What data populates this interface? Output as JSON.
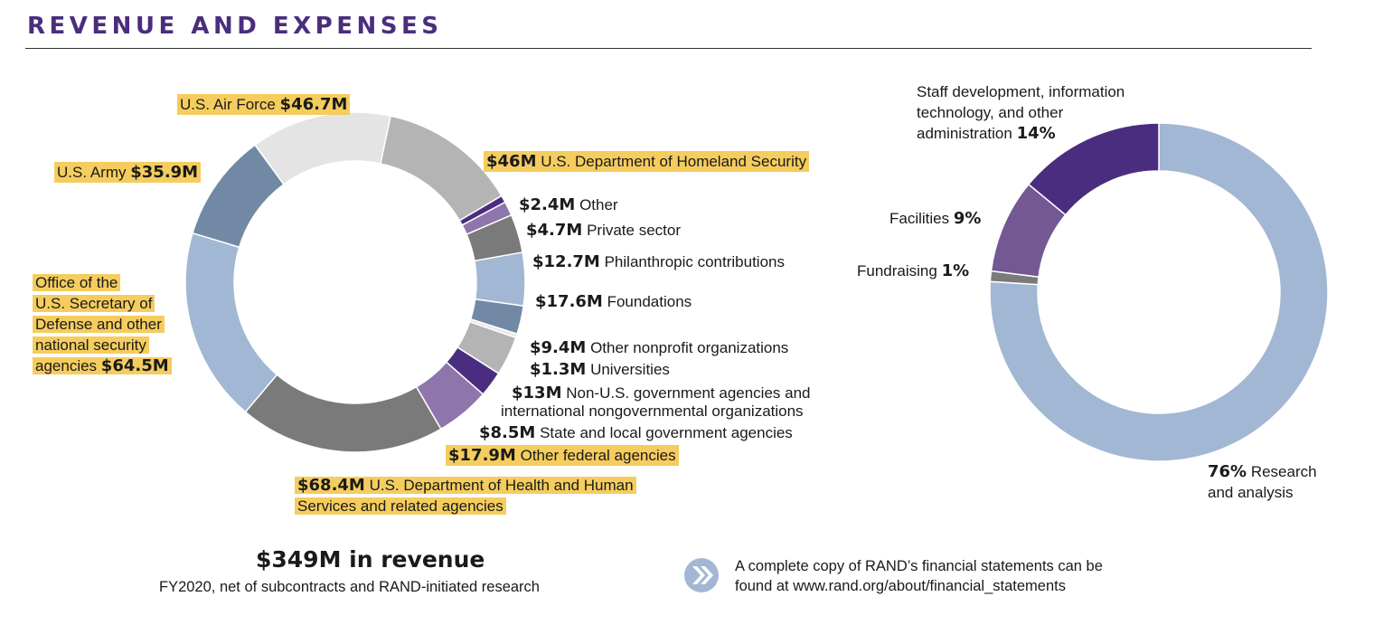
{
  "header": {
    "title": "REVENUE AND EXPENSES"
  },
  "revenue": {
    "total": "$349M in revenue",
    "subtitle": "FY2020, net of subcontracts and RAND-initiated research",
    "labels": {
      "air_force": {
        "name": "U.S. Air Force",
        "value": "$46.7M"
      },
      "army": {
        "name": "U.S. Army",
        "value": "$35.9M"
      },
      "osd_l1": "Office of the",
      "osd_l2": "U.S. Secretary of",
      "osd_l3": "Defense and other",
      "osd_l4": "national security",
      "osd_l5": "agencies",
      "osd_value": "$64.5M",
      "dhs": {
        "value": "$46M",
        "name": "U.S. Department of Homeland Security"
      },
      "other": {
        "value": "$2.4M",
        "name": "Other"
      },
      "private": {
        "value": "$4.7M",
        "name": "Private sector"
      },
      "philanthropic": {
        "value": "$12.7M",
        "name": "Philanthropic contributions"
      },
      "foundations": {
        "value": "$17.6M",
        "name": "Foundations"
      },
      "nonprofit": {
        "value": "$9.4M",
        "name": "Other nonprofit organizations"
      },
      "universities": {
        "value": "$1.3M",
        "name": "Universities"
      },
      "nonus": {
        "value": "$13M",
        "name_l1": "Non-U.S. government agencies and",
        "name_l2": "international nongovernmental organizations"
      },
      "state": {
        "value": "$8.5M",
        "name": "State and local government agencies"
      },
      "otherfed": {
        "value": "$17.9M",
        "name": "Other federal agencies"
      },
      "hhs": {
        "value": "$68.4M",
        "name_l1": "U.S. Department of Health and Human",
        "name_l2": "Services and related agencies"
      }
    }
  },
  "expenses": {
    "labels": {
      "staff_l1": "Staff development, information",
      "staff_l2": "technology, and other",
      "staff_l3": "administration",
      "staff_value": "14%",
      "facilities": {
        "name": "Facilities",
        "value": "9%"
      },
      "fundraising": {
        "name": "Fundraising",
        "value": "1%"
      },
      "research": {
        "value": "76%",
        "name_l1": "Research",
        "name_l2": "and analysis"
      }
    }
  },
  "note": {
    "line1": "A complete copy of RAND’s financial statements can be",
    "line2": "found at www.rand.org/about/financial_statements"
  },
  "chart_data": [
    {
      "type": "pie",
      "donut": true,
      "title": "$349M in revenue",
      "subtitle": "FY2020, net of subcontracts and RAND-initiated research",
      "unit": "$M",
      "slices": [
        {
          "label": "U.S. Department of Homeland Security",
          "value": 46.0,
          "color": "#b4b4b4"
        },
        {
          "label": "Other",
          "value": 2.4,
          "color": "#4b2d7f"
        },
        {
          "label": "Private sector",
          "value": 4.7,
          "color": "#8e76ac"
        },
        {
          "label": "Philanthropic contributions",
          "value": 12.7,
          "color": "#7a7a7a"
        },
        {
          "label": "Foundations",
          "value": 17.6,
          "color": "#a2b7d3"
        },
        {
          "label": "Other nonprofit organizations",
          "value": 9.4,
          "color": "#7189a4"
        },
        {
          "label": "Universities",
          "value": 1.3,
          "color": "#e8e8e8"
        },
        {
          "label": "Non-U.S. government agencies and international nongovernmental organizations",
          "value": 13.0,
          "color": "#b4b4b4"
        },
        {
          "label": "State and local government agencies",
          "value": 8.5,
          "color": "#4b2d7f"
        },
        {
          "label": "Other federal agencies",
          "value": 17.9,
          "color": "#8e76ac"
        },
        {
          "label": "U.S. Department of Health and Human Services and related agencies",
          "value": 68.4,
          "color": "#7a7a7a"
        },
        {
          "label": "Office of the U.S. Secretary of Defense and other national security agencies",
          "value": 64.5,
          "color": "#a2b7d3"
        },
        {
          "label": "U.S. Army",
          "value": 35.9,
          "color": "#7189a4"
        },
        {
          "label": "U.S. Air Force",
          "value": 46.7,
          "color": "#e4e4e4"
        }
      ]
    },
    {
      "type": "pie",
      "donut": true,
      "unit": "%",
      "slices": [
        {
          "label": "Research and analysis",
          "value": 76,
          "color": "#a2b7d3"
        },
        {
          "label": "Fundraising",
          "value": 1,
          "color": "#7a7a7a"
        },
        {
          "label": "Facilities",
          "value": 9,
          "color": "#735894"
        },
        {
          "label": "Staff development, information technology, and other administration",
          "value": 14,
          "color": "#4b2d7f"
        }
      ]
    }
  ]
}
